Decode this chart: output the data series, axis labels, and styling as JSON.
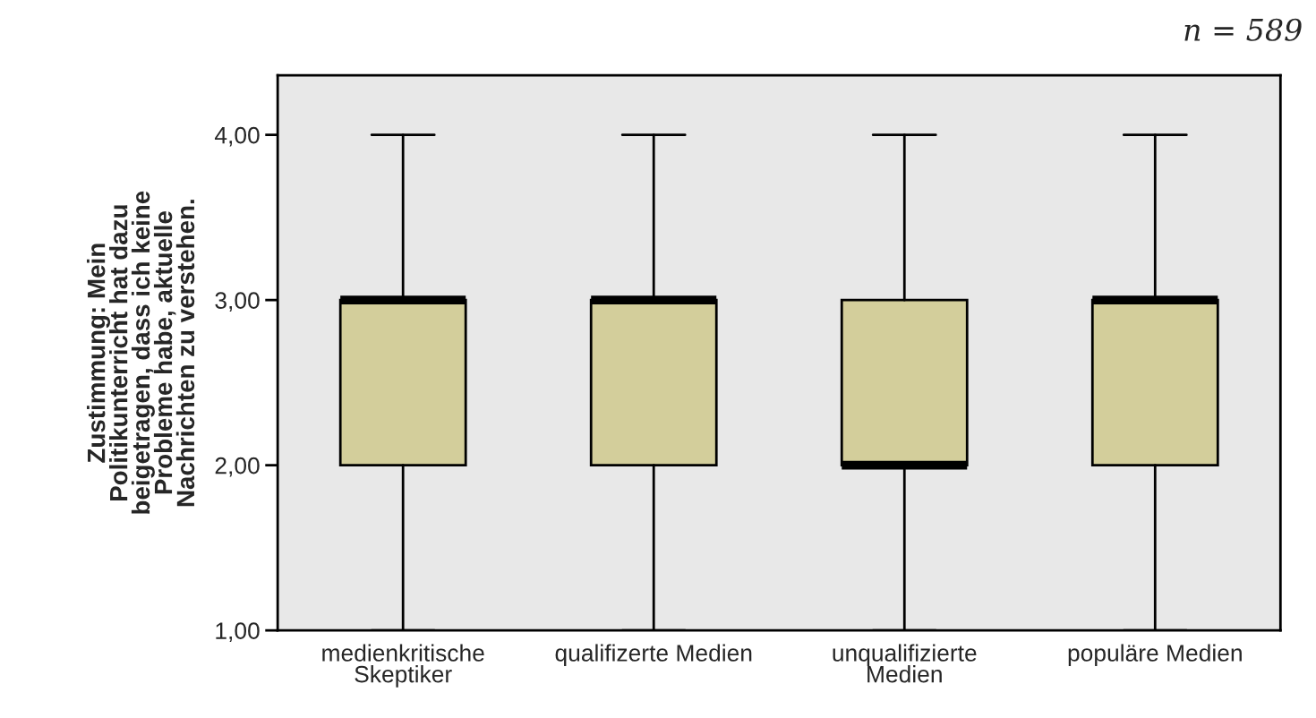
{
  "chart_data": {
    "type": "box",
    "categories": [
      "medienkritische\nSkeptiker",
      "qualifizerte Medien",
      "unqualifizierte\nMedien",
      "populäre Medien"
    ],
    "ylabel": "Zustimmung: Mein\nPolitikunterricht hat dazu\nbeigetragen, dass ich keine\nProbleme habe, aktuelle\nNachrichten zu verstehen.",
    "boxes": [
      {
        "low": 1,
        "q1": 2,
        "median": 3,
        "q3": 3,
        "high": 4
      },
      {
        "low": 1,
        "q1": 2,
        "median": 3,
        "q3": 3,
        "high": 4
      },
      {
        "low": 1,
        "q1": 2,
        "median": 2,
        "q3": 3,
        "high": 4
      },
      {
        "low": 1,
        "q1": 2,
        "median": 3,
        "q3": 3,
        "high": 4
      }
    ],
    "color": "#d3ce9b",
    "ylim": [
      1,
      4.36
    ],
    "yticks": [
      {
        "value": 1,
        "label": "1,00"
      },
      {
        "value": 2,
        "label": "2,00"
      },
      {
        "value": 3,
        "label": "3,00"
      },
      {
        "value": 4,
        "label": "4,00"
      }
    ],
    "annotations": [
      "n = 589"
    ],
    "grid": false,
    "legend": false
  }
}
